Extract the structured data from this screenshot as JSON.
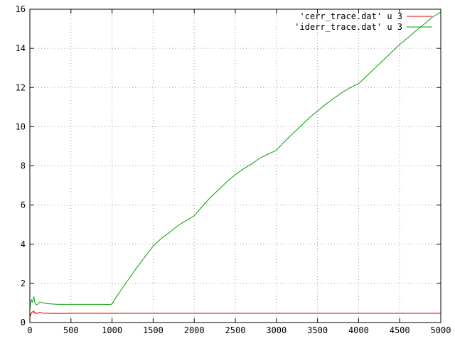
{
  "chart_data": {
    "type": "line",
    "title": "",
    "xlabel": "",
    "ylabel": "",
    "xlim": [
      0,
      5000
    ],
    "ylim": [
      0,
      16
    ],
    "grid": true,
    "legend_position": "top-right",
    "x_ticks": [
      0,
      500,
      1000,
      1500,
      2000,
      2500,
      3000,
      3500,
      4000,
      4500,
      5000
    ],
    "y_ticks": [
      0,
      2,
      4,
      6,
      8,
      10,
      12,
      14,
      16
    ],
    "series": [
      {
        "name": "'cerr_trace.dat' u 3",
        "color": "#e00000",
        "x": [
          0,
          5,
          10,
          20,
          30,
          40,
          50,
          60,
          70,
          80,
          100,
          120,
          140,
          160,
          200,
          250,
          300,
          400,
          500,
          600,
          800,
          1000,
          1500,
          2000,
          3000,
          4000,
          5000
        ],
        "y": [
          0.25,
          0.42,
          0.38,
          0.5,
          0.55,
          0.52,
          0.58,
          0.48,
          0.5,
          0.46,
          0.48,
          0.52,
          0.5,
          0.47,
          0.48,
          0.46,
          0.47,
          0.46,
          0.47,
          0.47,
          0.47,
          0.47,
          0.47,
          0.47,
          0.47,
          0.47,
          0.47
        ]
      },
      {
        "name": "'iderr_trace.dat' u 3",
        "color": "#00a000",
        "x": [
          0,
          5,
          10,
          20,
          30,
          40,
          50,
          60,
          70,
          80,
          90,
          100,
          120,
          140,
          160,
          200,
          250,
          300,
          350,
          400,
          500,
          600,
          700,
          800,
          900,
          980,
          1000,
          1050,
          1100,
          1200,
          1300,
          1400,
          1500,
          1600,
          1700,
          1800,
          1900,
          2000,
          2100,
          2200,
          2300,
          2400,
          2500,
          2600,
          2700,
          2800,
          2900,
          3000,
          3100,
          3200,
          3300,
          3400,
          3500,
          3600,
          3700,
          3800,
          3900,
          4000,
          4100,
          4200,
          4300,
          4400,
          4500,
          4600,
          4700,
          4800,
          4900,
          5000
        ],
        "y": [
          0.6,
          0.9,
          1.0,
          1.15,
          1.05,
          1.2,
          1.3,
          1.05,
          0.95,
          0.9,
          0.92,
          0.95,
          1.05,
          1.02,
          1.0,
          0.97,
          0.95,
          0.94,
          0.93,
          0.93,
          0.93,
          0.93,
          0.93,
          0.93,
          0.93,
          0.92,
          0.95,
          1.3,
          1.6,
          2.2,
          2.8,
          3.35,
          3.9,
          4.3,
          4.6,
          4.95,
          5.2,
          5.45,
          5.95,
          6.4,
          6.8,
          7.2,
          7.55,
          7.85,
          8.1,
          8.4,
          8.6,
          8.8,
          9.25,
          9.65,
          10.05,
          10.45,
          10.8,
          11.15,
          11.45,
          11.75,
          12.0,
          12.2,
          12.6,
          13.0,
          13.4,
          13.8,
          14.2,
          14.55,
          14.9,
          15.25,
          15.6,
          15.85
        ]
      }
    ]
  }
}
